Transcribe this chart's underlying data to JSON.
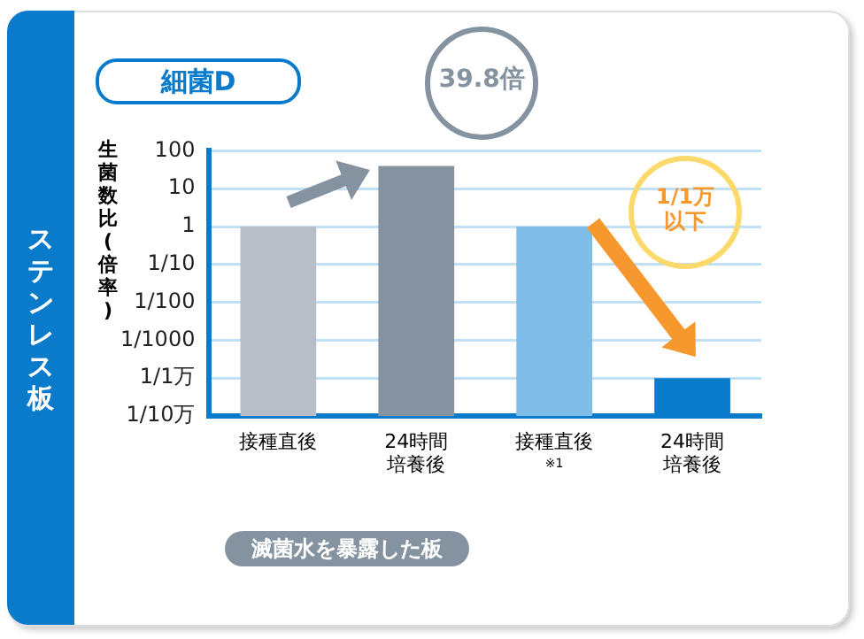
{
  "chart_data": {
    "type": "bar",
    "title": "細菌D",
    "subtitle": "ステンレス板",
    "ylabel": "生菌数比(倍率)",
    "categories": [
      "接種直後",
      "24時間培養後",
      "接種直後$^{※1}$",
      "24時間培養後"
    ],
    "values": [
      1,
      39.8,
      1,
      0.0001
    ],
    "colors": [
      "#b7bec7",
      "#8593a0",
      "#7fbde6",
      "#0a7bcb"
    ],
    "log": true,
    "ylim": [
      1e-05,
      100
    ],
    "yticks": [
      100,
      10,
      1,
      {
        "value": 0.1,
        "label": "1/10"
      },
      {
        "value": 0.01,
        "label": "1/100"
      },
      {
        "value": 0.001,
        "label": "1/1000"
      },
      {
        "value": 0.0001,
        "label": "1/1万"
      },
      {
        "value": 1e-05,
        "label": "1/10万"
      }
    ],
    "grid": "y",
    "legend": false,
    "annotations": [
      "39.8倍",
      "1/1万以下",
      "滅菌水を暴露した板"
    ]
  }
}
